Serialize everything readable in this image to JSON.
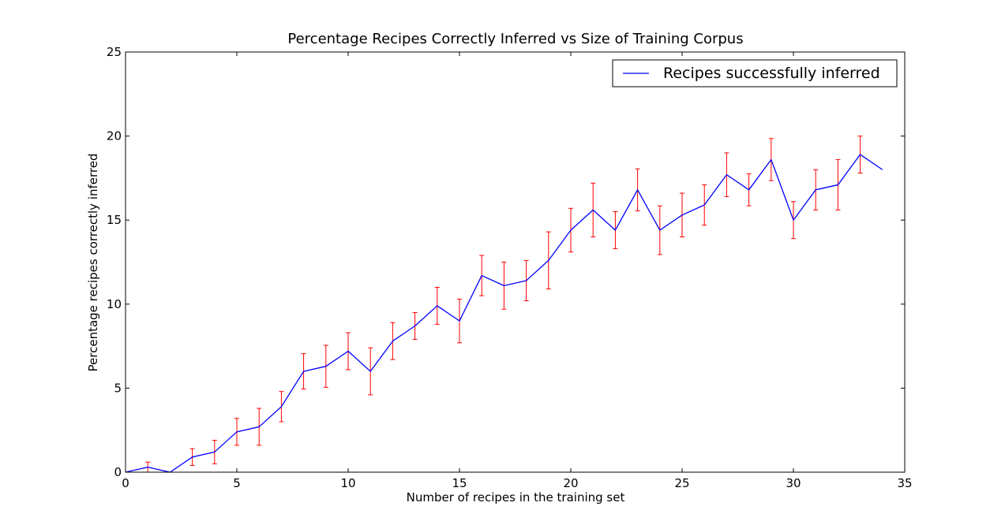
{
  "chart_data": {
    "type": "line",
    "title": "Percentage Recipes Correctly Inferred vs Size of Training Corpus",
    "xlabel": "Number of recipes in the training set",
    "ylabel": "Percentage recipes correctly inferred",
    "xlim": [
      0,
      35
    ],
    "ylim": [
      0,
      25
    ],
    "xticks": [
      0,
      5,
      10,
      15,
      20,
      25,
      30,
      35
    ],
    "yticks": [
      0,
      5,
      10,
      15,
      20,
      25
    ],
    "grid": false,
    "legend_position": "top-right",
    "series": [
      {
        "name": "Recipes successfully inferred",
        "color": "#0000ff",
        "errorbar_color": "#ff0000",
        "x": [
          0,
          1,
          2,
          3,
          4,
          5,
          6,
          7,
          8,
          9,
          10,
          11,
          12,
          13,
          14,
          15,
          16,
          17,
          18,
          19,
          20,
          21,
          22,
          23,
          24,
          25,
          26,
          27,
          28,
          29,
          30,
          31,
          32,
          33,
          34
        ],
        "y": [
          0,
          0.3,
          0,
          0.9,
          1.2,
          2.4,
          2.7,
          3.9,
          6.0,
          6.3,
          7.2,
          6.0,
          7.8,
          8.7,
          9.9,
          9.0,
          11.7,
          11.1,
          11.4,
          12.6,
          14.4,
          15.6,
          14.4,
          16.8,
          14.4,
          15.3,
          15.9,
          17.7,
          16.8,
          18.6,
          15.0,
          16.8,
          17.1,
          18.9,
          18.0
        ],
        "err": [
          0,
          0.3,
          0,
          0.5,
          0.7,
          0.8,
          1.1,
          0.9,
          1.05,
          1.25,
          1.1,
          1.4,
          1.1,
          0.8,
          1.1,
          1.3,
          1.2,
          1.4,
          1.2,
          1.7,
          1.3,
          1.6,
          1.1,
          1.25,
          1.45,
          1.3,
          1.2,
          1.3,
          0.95,
          1.25,
          1.1,
          1.2,
          1.5,
          1.1,
          0
        ]
      }
    ]
  }
}
